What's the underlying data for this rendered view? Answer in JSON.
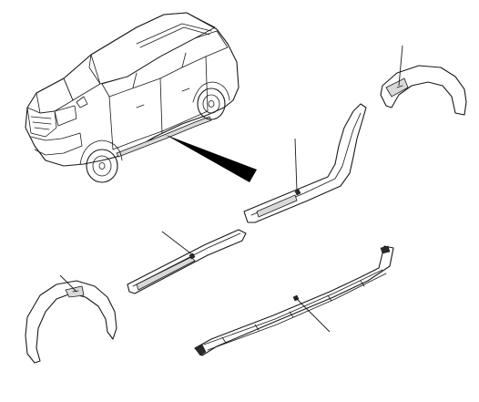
{
  "diagram": {
    "parts": [
      {
        "name": "vehicle"
      },
      {
        "name": "rear-wheel-arch-molding"
      },
      {
        "name": "rear-door-molding"
      },
      {
        "name": "front-door-molding"
      },
      {
        "name": "front-wheel-arch-molding"
      },
      {
        "name": "side-sill-molding"
      }
    ],
    "callout_lines": 5,
    "text_labels": []
  }
}
